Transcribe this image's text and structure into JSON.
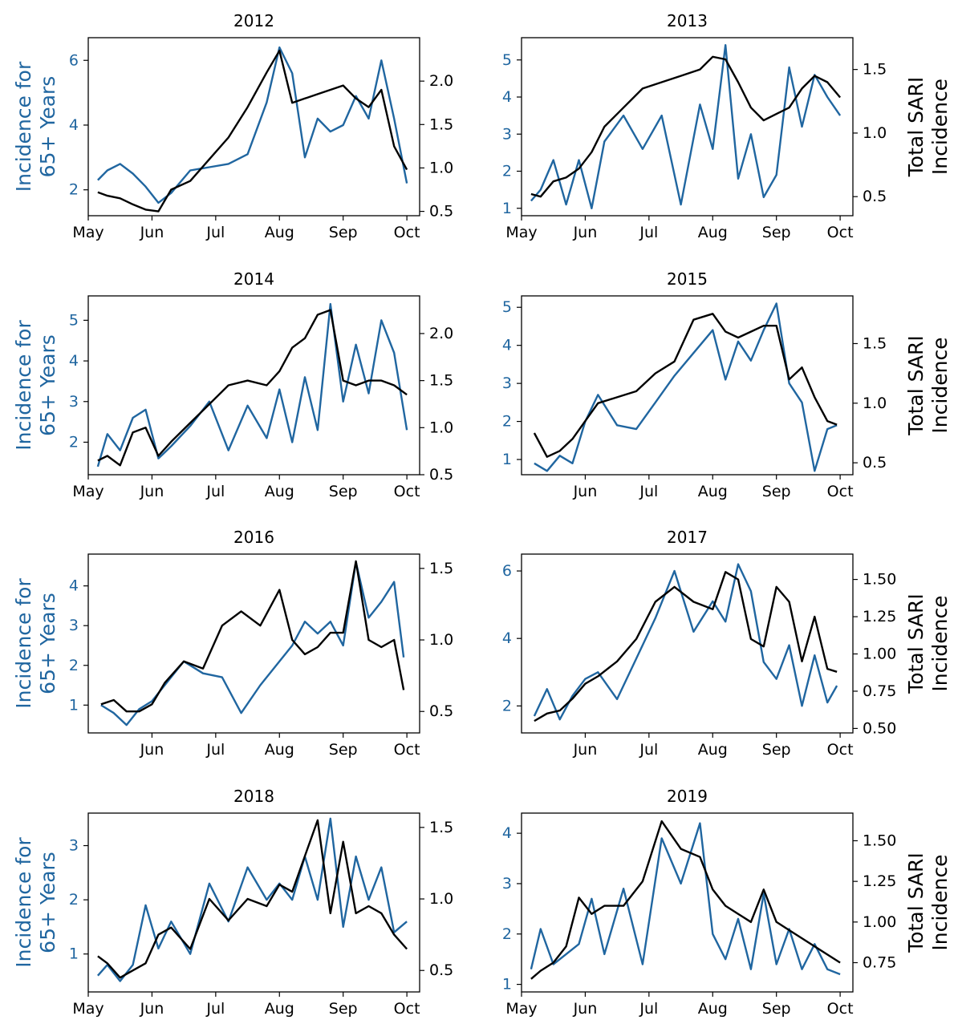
{
  "colors": {
    "left_series": "#2066a0",
    "right_series": "#000000"
  },
  "y_left_label_lines": [
    "Incidence for",
    "65+ Years"
  ],
  "y_right_label_lines": [
    "Total SARI",
    "Incidence"
  ],
  "chart_data": [
    {
      "type": "line",
      "title": "2012",
      "x_ticks": [
        "May",
        "Jun",
        "Jul",
        "Aug",
        "Sep",
        "Oct"
      ],
      "y_left_ticks": [
        "2",
        "4",
        "6"
      ],
      "y_left_tick_values": [
        2,
        4,
        6
      ],
      "ylim_left": [
        1.2,
        6.7
      ],
      "y_right_ticks": [
        "0.5",
        "1.0",
        "1.5",
        "2.0"
      ],
      "y_right_tick_values": [
        0.5,
        1.0,
        1.5,
        2.0
      ],
      "ylim_right": [
        0.45,
        2.5
      ],
      "series": [
        {
          "axis": "left",
          "x": [
            0.15,
            0.3,
            0.5,
            0.7,
            0.9,
            1.1,
            1.3,
            1.6,
            1.9,
            2.2,
            2.5,
            2.8,
            3.0,
            3.2,
            3.4,
            3.6,
            3.8,
            4.0,
            4.2,
            4.4,
            4.6,
            4.8,
            5.0
          ],
          "values": [
            2.3,
            2.6,
            2.8,
            2.5,
            2.1,
            1.6,
            1.9,
            2.6,
            2.7,
            2.8,
            3.1,
            4.7,
            6.4,
            5.6,
            3.0,
            4.2,
            3.8,
            4.0,
            4.9,
            4.2,
            6.0,
            4.2,
            2.2
          ]
        },
        {
          "axis": "right",
          "x": [
            0.15,
            0.3,
            0.5,
            0.7,
            0.9,
            1.1,
            1.3,
            1.6,
            1.9,
            2.2,
            2.5,
            2.8,
            3.0,
            3.2,
            3.4,
            3.6,
            3.8,
            4.0,
            4.2,
            4.4,
            4.6,
            4.8,
            5.0
          ],
          "values": [
            0.72,
            0.68,
            0.65,
            0.58,
            0.52,
            0.5,
            0.75,
            0.85,
            1.1,
            1.35,
            1.7,
            2.1,
            2.35,
            1.75,
            1.8,
            1.85,
            1.9,
            1.95,
            1.8,
            1.7,
            1.9,
            1.25,
            0.98
          ]
        }
      ]
    },
    {
      "type": "line",
      "title": "2013",
      "x_ticks": [
        "May",
        "Jun",
        "Jul",
        "Aug",
        "Sep",
        "Oct"
      ],
      "y_left_ticks": [
        "1",
        "2",
        "3",
        "4",
        "5"
      ],
      "y_left_tick_values": [
        1,
        2,
        3,
        4,
        5
      ],
      "ylim_left": [
        0.8,
        5.6
      ],
      "y_right_ticks": [
        "0.5",
        "1.0",
        "1.5"
      ],
      "y_right_tick_values": [
        0.5,
        1.0,
        1.5
      ],
      "ylim_right": [
        0.35,
        1.75
      ],
      "series": [
        {
          "axis": "left",
          "x": [
            0.15,
            0.3,
            0.5,
            0.7,
            0.9,
            1.1,
            1.3,
            1.6,
            1.9,
            2.2,
            2.5,
            2.8,
            3.0,
            3.2,
            3.4,
            3.6,
            3.8,
            4.0,
            4.2,
            4.4,
            4.6,
            4.8,
            5.0
          ],
          "values": [
            1.2,
            1.5,
            2.3,
            1.1,
            2.3,
            1.0,
            2.8,
            3.5,
            2.6,
            3.5,
            1.1,
            3.8,
            2.6,
            5.4,
            1.8,
            3.0,
            1.3,
            1.9,
            4.8,
            3.2,
            4.6,
            4.0,
            3.5
          ]
        },
        {
          "axis": "right",
          "x": [
            0.15,
            0.3,
            0.5,
            0.7,
            0.9,
            1.1,
            1.3,
            1.6,
            1.9,
            2.2,
            2.5,
            2.8,
            3.0,
            3.2,
            3.4,
            3.6,
            3.8,
            4.0,
            4.2,
            4.4,
            4.6,
            4.8,
            5.0
          ],
          "values": [
            0.52,
            0.5,
            0.62,
            0.65,
            0.72,
            0.85,
            1.05,
            1.2,
            1.35,
            1.4,
            1.45,
            1.5,
            1.6,
            1.58,
            1.4,
            1.2,
            1.1,
            1.15,
            1.2,
            1.35,
            1.45,
            1.4,
            1.28
          ]
        }
      ]
    },
    {
      "type": "line",
      "title": "2014",
      "x_ticks": [
        "May",
        "Jun",
        "Jul",
        "Aug",
        "Sep",
        "Oct"
      ],
      "y_left_ticks": [
        "2",
        "3",
        "4",
        "5"
      ],
      "y_left_tick_values": [
        2,
        3,
        4,
        5
      ],
      "ylim_left": [
        1.2,
        5.6
      ],
      "y_right_ticks": [
        "0.5",
        "1.0",
        "1.5",
        "2.0"
      ],
      "y_right_tick_values": [
        0.5,
        1.0,
        1.5,
        2.0
      ],
      "ylim_right": [
        0.5,
        2.4
      ],
      "series": [
        {
          "axis": "left",
          "x": [
            0.15,
            0.3,
            0.5,
            0.7,
            0.9,
            1.1,
            1.3,
            1.6,
            1.9,
            2.2,
            2.5,
            2.8,
            3.0,
            3.2,
            3.4,
            3.6,
            3.8,
            4.0,
            4.2,
            4.4,
            4.6,
            4.8,
            5.0
          ],
          "values": [
            1.4,
            2.2,
            1.8,
            2.6,
            2.8,
            1.6,
            1.9,
            2.4,
            3.0,
            1.8,
            2.9,
            2.1,
            3.3,
            2.0,
            3.6,
            2.3,
            5.4,
            3.0,
            4.4,
            3.2,
            5.0,
            4.2,
            2.3
          ]
        },
        {
          "axis": "right",
          "x": [
            0.15,
            0.3,
            0.5,
            0.7,
            0.9,
            1.1,
            1.3,
            1.6,
            1.9,
            2.2,
            2.5,
            2.8,
            3.0,
            3.2,
            3.4,
            3.6,
            3.8,
            4.0,
            4.2,
            4.4,
            4.6,
            4.8,
            5.0
          ],
          "values": [
            0.65,
            0.7,
            0.6,
            0.95,
            1.0,
            0.7,
            0.85,
            1.05,
            1.25,
            1.45,
            1.5,
            1.45,
            1.6,
            1.85,
            1.95,
            2.2,
            2.25,
            1.5,
            1.45,
            1.5,
            1.5,
            1.45,
            1.35
          ]
        }
      ]
    },
    {
      "type": "line",
      "title": "2015",
      "x_ticks": [
        "Jun",
        "Jul",
        "Aug",
        "Sep",
        "Oct"
      ],
      "y_left_ticks": [
        "1",
        "2",
        "3",
        "4",
        "5"
      ],
      "y_left_tick_values": [
        1,
        2,
        3,
        4,
        5
      ],
      "ylim_left": [
        0.6,
        5.3
      ],
      "y_right_ticks": [
        "0.5",
        "1.0",
        "1.5"
      ],
      "y_right_tick_values": [
        0.5,
        1.0,
        1.5
      ],
      "ylim_right": [
        0.4,
        1.9
      ],
      "series": [
        {
          "axis": "left",
          "x": [
            0.2,
            0.4,
            0.6,
            0.8,
            1.0,
            1.2,
            1.5,
            1.8,
            2.1,
            2.4,
            2.7,
            3.0,
            3.2,
            3.4,
            3.6,
            3.8,
            4.0,
            4.2,
            4.4,
            4.6,
            4.8,
            4.95
          ],
          "values": [
            0.9,
            0.7,
            1.1,
            0.9,
            2.0,
            2.7,
            1.9,
            1.8,
            2.5,
            3.2,
            3.8,
            4.4,
            3.1,
            4.1,
            3.6,
            4.4,
            5.1,
            3.0,
            2.5,
            0.7,
            1.8,
            1.9
          ]
        },
        {
          "axis": "right",
          "x": [
            0.2,
            0.4,
            0.6,
            0.8,
            1.0,
            1.2,
            1.5,
            1.8,
            2.1,
            2.4,
            2.7,
            3.0,
            3.2,
            3.4,
            3.6,
            3.8,
            4.0,
            4.2,
            4.4,
            4.6,
            4.8,
            4.95
          ],
          "values": [
            0.75,
            0.55,
            0.6,
            0.7,
            0.85,
            1.0,
            1.05,
            1.1,
            1.25,
            1.35,
            1.7,
            1.75,
            1.6,
            1.55,
            1.6,
            1.65,
            1.65,
            1.2,
            1.3,
            1.05,
            0.85,
            0.82
          ]
        }
      ]
    },
    {
      "type": "line",
      "title": "2016",
      "x_ticks": [
        "Jun",
        "Jul",
        "Aug",
        "Sep",
        "Oct"
      ],
      "y_left_ticks": [
        "1",
        "2",
        "3",
        "4"
      ],
      "y_left_tick_values": [
        1,
        2,
        3,
        4
      ],
      "ylim_left": [
        0.3,
        4.8
      ],
      "y_right_ticks": [
        "0.5",
        "1.0",
        "1.5"
      ],
      "y_right_tick_values": [
        0.5,
        1.0,
        1.5
      ],
      "ylim_right": [
        0.35,
        1.6
      ],
      "series": [
        {
          "axis": "left",
          "x": [
            0.2,
            0.4,
            0.6,
            0.8,
            1.0,
            1.2,
            1.5,
            1.8,
            2.1,
            2.4,
            2.7,
            3.0,
            3.2,
            3.4,
            3.6,
            3.8,
            4.0,
            4.2,
            4.4,
            4.6,
            4.8,
            4.95
          ],
          "values": [
            1.0,
            0.8,
            0.5,
            0.9,
            1.1,
            1.5,
            2.1,
            1.8,
            1.7,
            0.8,
            1.5,
            2.1,
            2.5,
            3.1,
            2.8,
            3.1,
            2.5,
            4.6,
            3.2,
            3.6,
            4.1,
            2.2
          ]
        },
        {
          "axis": "right",
          "x": [
            0.2,
            0.4,
            0.6,
            0.8,
            1.0,
            1.2,
            1.5,
            1.8,
            2.1,
            2.4,
            2.7,
            3.0,
            3.2,
            3.4,
            3.6,
            3.8,
            4.0,
            4.2,
            4.4,
            4.6,
            4.8,
            4.95
          ],
          "values": [
            0.55,
            0.58,
            0.5,
            0.5,
            0.55,
            0.7,
            0.85,
            0.8,
            1.1,
            1.2,
            1.1,
            1.35,
            1.0,
            0.9,
            0.95,
            1.05,
            1.05,
            1.55,
            1.0,
            0.95,
            1.0,
            0.65
          ]
        }
      ]
    },
    {
      "type": "line",
      "title": "2017",
      "x_ticks": [
        "Jun",
        "Jul",
        "Aug",
        "Sep",
        "Oct"
      ],
      "y_left_ticks": [
        "2",
        "4",
        "6"
      ],
      "y_left_tick_values": [
        2,
        4,
        6
      ],
      "ylim_left": [
        1.2,
        6.5
      ],
      "y_right_ticks": [
        "0.50",
        "0.75",
        "1.00",
        "1.25",
        "1.50"
      ],
      "y_right_tick_values": [
        0.5,
        0.75,
        1.0,
        1.25,
        1.5
      ],
      "ylim_right": [
        0.47,
        1.67
      ],
      "series": [
        {
          "axis": "left",
          "x": [
            0.2,
            0.4,
            0.6,
            0.8,
            1.0,
            1.2,
            1.5,
            1.8,
            2.1,
            2.4,
            2.7,
            3.0,
            3.2,
            3.4,
            3.6,
            3.8,
            4.0,
            4.2,
            4.4,
            4.6,
            4.8,
            4.95
          ],
          "values": [
            1.7,
            2.5,
            1.6,
            2.3,
            2.8,
            3.0,
            2.2,
            3.4,
            4.6,
            6.0,
            4.2,
            5.1,
            4.5,
            6.2,
            5.4,
            3.3,
            2.8,
            3.8,
            2.0,
            3.5,
            2.1,
            2.6
          ]
        },
        {
          "axis": "right",
          "x": [
            0.2,
            0.4,
            0.6,
            0.8,
            1.0,
            1.2,
            1.5,
            1.8,
            2.1,
            2.4,
            2.7,
            3.0,
            3.2,
            3.4,
            3.6,
            3.8,
            4.0,
            4.2,
            4.4,
            4.6,
            4.8,
            4.95
          ],
          "values": [
            0.55,
            0.6,
            0.62,
            0.7,
            0.8,
            0.85,
            0.95,
            1.1,
            1.35,
            1.45,
            1.35,
            1.3,
            1.55,
            1.5,
            1.1,
            1.05,
            1.45,
            1.35,
            0.95,
            1.25,
            0.9,
            0.88
          ]
        }
      ]
    },
    {
      "type": "line",
      "title": "2018",
      "x_ticks": [
        "May",
        "Jun",
        "Jul",
        "Aug",
        "Sep",
        "Oct"
      ],
      "y_left_ticks": [
        "1",
        "2",
        "3"
      ],
      "y_left_tick_values": [
        1,
        2,
        3
      ],
      "ylim_left": [
        0.3,
        3.6
      ],
      "y_right_ticks": [
        "0.5",
        "1.0",
        "1.5"
      ],
      "y_right_tick_values": [
        0.5,
        1.0,
        1.5
      ],
      "ylim_right": [
        0.35,
        1.6
      ],
      "series": [
        {
          "axis": "left",
          "x": [
            0.15,
            0.3,
            0.5,
            0.7,
            0.9,
            1.1,
            1.3,
            1.6,
            1.9,
            2.2,
            2.5,
            2.8,
            3.0,
            3.2,
            3.4,
            3.6,
            3.8,
            4.0,
            4.2,
            4.4,
            4.6,
            4.8,
            5.0
          ],
          "values": [
            0.6,
            0.8,
            0.5,
            0.8,
            1.9,
            1.1,
            1.6,
            1.0,
            2.3,
            1.6,
            2.6,
            2.0,
            2.3,
            2.0,
            2.8,
            2.0,
            3.5,
            1.5,
            2.8,
            2.0,
            2.6,
            1.4,
            1.6
          ]
        },
        {
          "axis": "right",
          "x": [
            0.15,
            0.3,
            0.5,
            0.7,
            0.9,
            1.1,
            1.3,
            1.6,
            1.9,
            2.2,
            2.5,
            2.8,
            3.0,
            3.2,
            3.4,
            3.6,
            3.8,
            4.0,
            4.2,
            4.4,
            4.6,
            4.8,
            5.0
          ],
          "values": [
            0.6,
            0.55,
            0.45,
            0.5,
            0.55,
            0.75,
            0.8,
            0.65,
            1.0,
            0.85,
            1.0,
            0.95,
            1.1,
            1.05,
            1.3,
            1.55,
            0.9,
            1.4,
            0.9,
            0.95,
            0.9,
            0.75,
            0.65
          ]
        }
      ]
    },
    {
      "type": "line",
      "title": "2019",
      "x_ticks": [
        "May",
        "Jun",
        "Jul",
        "Aug",
        "Sep",
        "Oct"
      ],
      "y_left_ticks": [
        "1",
        "2",
        "3",
        "4"
      ],
      "y_left_tick_values": [
        1,
        2,
        3,
        4
      ],
      "ylim_left": [
        0.85,
        4.4
      ],
      "y_right_ticks": [
        "0.75",
        "1.00",
        "1.25",
        "1.50"
      ],
      "y_right_tick_values": [
        0.75,
        1.0,
        1.25,
        1.5
      ],
      "ylim_right": [
        0.57,
        1.67
      ],
      "series": [
        {
          "axis": "left",
          "x": [
            0.15,
            0.3,
            0.5,
            0.7,
            0.9,
            1.1,
            1.3,
            1.6,
            1.9,
            2.2,
            2.5,
            2.8,
            3.0,
            3.2,
            3.4,
            3.6,
            3.8,
            4.0,
            4.2,
            4.4,
            4.6,
            4.8,
            5.0
          ],
          "values": [
            1.3,
            2.1,
            1.4,
            1.6,
            1.8,
            2.7,
            1.6,
            2.9,
            1.4,
            3.9,
            3.0,
            4.2,
            2.0,
            1.5,
            2.3,
            1.3,
            2.8,
            1.4,
            2.1,
            1.3,
            1.8,
            1.3,
            1.2
          ]
        },
        {
          "axis": "right",
          "x": [
            0.15,
            0.3,
            0.5,
            0.7,
            0.9,
            1.1,
            1.3,
            1.6,
            1.9,
            2.2,
            2.5,
            2.8,
            3.0,
            3.2,
            3.4,
            3.6,
            3.8,
            4.0,
            4.2,
            4.4,
            4.6,
            4.8,
            5.0
          ],
          "values": [
            0.65,
            0.7,
            0.75,
            0.85,
            1.15,
            1.05,
            1.1,
            1.1,
            1.25,
            1.62,
            1.45,
            1.4,
            1.2,
            1.1,
            1.05,
            1.0,
            1.2,
            1.0,
            0.95,
            0.9,
            0.85,
            0.8,
            0.75
          ]
        }
      ]
    }
  ]
}
